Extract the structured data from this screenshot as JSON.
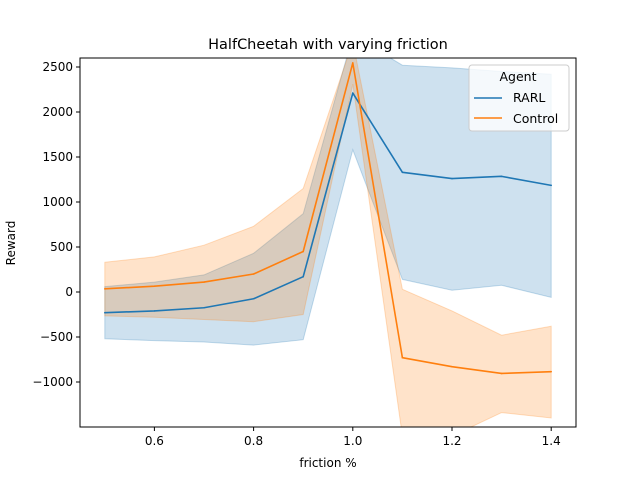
{
  "chart_data": {
    "type": "line",
    "title": "HalfCheetah with varying friction",
    "xlabel": "friction %",
    "ylabel": "Reward",
    "xlim": [
      0.45,
      1.45
    ],
    "ylim": [
      -1500,
      2600
    ],
    "xticks": [
      0.6,
      0.8,
      1.0,
      1.2,
      1.4
    ],
    "xtick_labels": [
      "0.6",
      "0.8",
      "1.0",
      "1.2",
      "1.4"
    ],
    "yticks": [
      -1000,
      -500,
      0,
      500,
      1000,
      1500,
      2000,
      2500
    ],
    "ytick_labels": [
      "−1000",
      "−500",
      "0",
      "500",
      "1000",
      "1500",
      "2000",
      "2500"
    ],
    "grid": false,
    "legend": {
      "title": "Agent",
      "placement": "top-right"
    },
    "x": [
      0.5,
      0.6,
      0.7,
      0.8,
      0.9,
      1.0,
      1.1,
      1.2,
      1.3,
      1.4
    ],
    "series": [
      {
        "name": "RARL",
        "color": "#1f77b4",
        "values": [
          -230,
          -210,
          -175,
          -75,
          170,
          2210,
          1330,
          1260,
          1285,
          1185
        ],
        "band_upper": [
          60,
          110,
          190,
          430,
          870,
          2850,
          2520,
          2490,
          2450,
          2420
        ],
        "band_lower": [
          -520,
          -540,
          -555,
          -590,
          -530,
          1580,
          140,
          20,
          75,
          -60
        ]
      },
      {
        "name": "Control",
        "color": "#ff7f0e",
        "values": [
          35,
          65,
          110,
          200,
          450,
          2545,
          -730,
          -830,
          -905,
          -885
        ],
        "band_upper": [
          330,
          390,
          520,
          730,
          1150,
          2780,
          30,
          -210,
          -480,
          -380
        ],
        "band_lower": [
          -265,
          -280,
          -305,
          -330,
          -250,
          2310,
          -1600,
          -1600,
          -1340,
          -1400
        ]
      }
    ]
  }
}
